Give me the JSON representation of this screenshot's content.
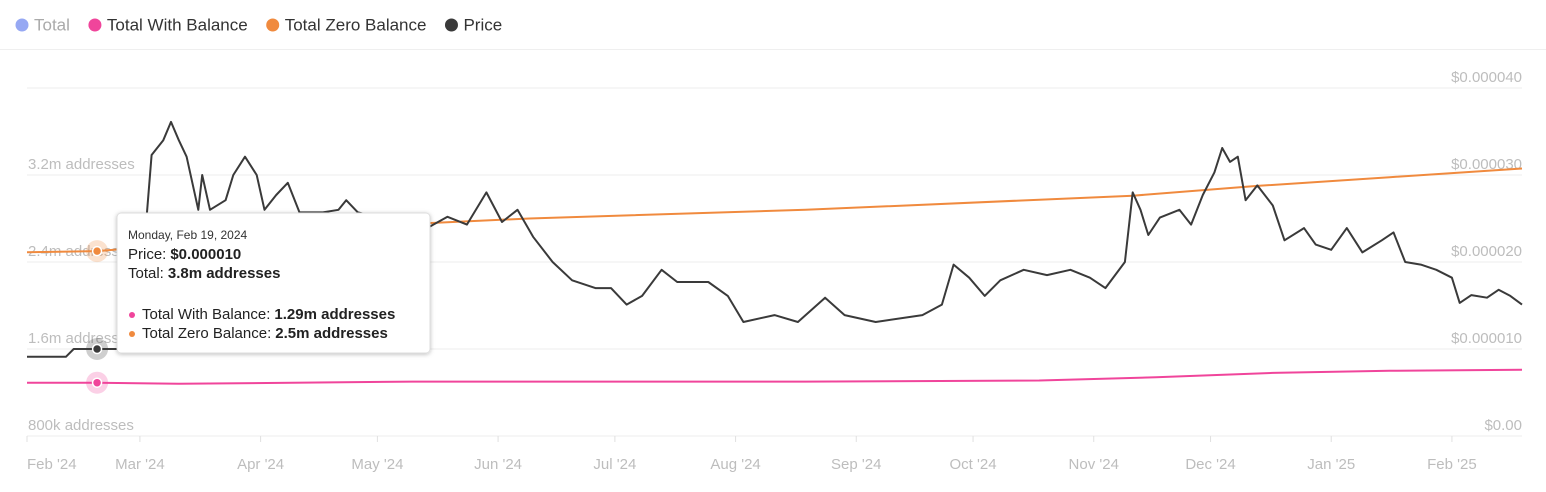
{
  "chart_data": {
    "type": "line",
    "xlim": [
      "2024-02-01",
      "2025-02-19"
    ],
    "xticks": [
      {
        "value": "2024-02-01",
        "label": "Feb '24"
      },
      {
        "value": "2024-03-01",
        "label": "Mar '24"
      },
      {
        "value": "2024-04-01",
        "label": "Apr '24"
      },
      {
        "value": "2024-05-01",
        "label": "May '24"
      },
      {
        "value": "2024-06-01",
        "label": "Jun '24"
      },
      {
        "value": "2024-07-01",
        "label": "Jul '24"
      },
      {
        "value": "2024-08-01",
        "label": "Aug '24"
      },
      {
        "value": "2024-09-01",
        "label": "Sep '24"
      },
      {
        "value": "2024-10-01",
        "label": "Oct '24"
      },
      {
        "value": "2024-11-01",
        "label": "Nov '24"
      },
      {
        "value": "2024-12-01",
        "label": "Dec '24"
      },
      {
        "value": "2025-01-01",
        "label": "Jan '25"
      },
      {
        "value": "2025-02-01",
        "label": "Feb '25"
      }
    ],
    "ylim": [
      800000,
      4000000
    ],
    "yticks": [
      {
        "value": 800000,
        "label": "800k addresses"
      },
      {
        "value": 1600000,
        "label": "1.6m addresses"
      },
      {
        "value": 2400000,
        "label": "2.4m addresses"
      },
      {
        "value": 3200000,
        "label": "3.2m addresses"
      }
    ],
    "y2lim": [
      0,
      4e-05
    ],
    "y2ticks": [
      {
        "value": 0,
        "label": "$0.00"
      },
      {
        "value": 1e-05,
        "label": "$0.000010"
      },
      {
        "value": 2e-05,
        "label": "$0.000020"
      },
      {
        "value": 3e-05,
        "label": "$0.000030"
      },
      {
        "value": 4e-05,
        "label": "$0.000040"
      }
    ],
    "grid": true,
    "series": [
      {
        "name": "Total",
        "color": "#8b9ff2",
        "hidden": true
      },
      {
        "name": "Total With Balance",
        "color": "#f0459b",
        "x": [
          "2024-02-01",
          "2024-02-19",
          "2024-03-11",
          "2024-05-10",
          "2024-08-19",
          "2024-10-18",
          "2024-11-17",
          "2024-12-17",
          "2025-01-16",
          "2025-02-19"
        ],
        "values": [
          1290000,
          1290000,
          1280000,
          1300000,
          1300000,
          1310000,
          1340000,
          1380000,
          1400000,
          1410000
        ]
      },
      {
        "name": "Total Zero Balance",
        "color": "#f08a3e",
        "x": [
          "2024-02-01",
          "2024-02-19",
          "2024-03-31",
          "2024-05-10",
          "2024-06-09",
          "2024-08-19",
          "2024-11-11",
          "2024-12-13",
          "2025-01-16",
          "2025-02-19"
        ],
        "values": [
          2490000,
          2500000,
          2620000,
          2750000,
          2800000,
          2880000,
          3010000,
          3100000,
          3180000,
          3260000
        ]
      },
      {
        "name": "Price",
        "color": "#3a3a3a",
        "axis": "y2",
        "x": [
          "2024-02-01",
          "2024-02-11",
          "2024-02-13",
          "2024-02-19",
          "2024-02-29",
          "2024-03-04",
          "2024-03-07",
          "2024-03-09",
          "2024-03-11",
          "2024-03-13",
          "2024-03-16",
          "2024-03-17",
          "2024-03-19",
          "2024-03-23",
          "2024-03-25",
          "2024-03-28",
          "2024-03-31",
          "2024-04-02",
          "2024-04-05",
          "2024-04-08",
          "2024-04-11",
          "2024-04-17",
          "2024-04-21",
          "2024-04-23",
          "2024-04-26",
          "2024-05-06",
          "2024-05-13",
          "2024-05-19",
          "2024-05-24",
          "2024-05-29",
          "2024-06-02",
          "2024-06-06",
          "2024-06-10",
          "2024-06-15",
          "2024-06-20",
          "2024-06-26",
          "2024-06-30",
          "2024-07-04",
          "2024-07-08",
          "2024-07-13",
          "2024-07-17",
          "2024-07-25",
          "2024-07-30",
          "2024-08-03",
          "2024-08-11",
          "2024-08-17",
          "2024-08-24",
          "2024-08-29",
          "2024-09-06",
          "2024-09-18",
          "2024-09-23",
          "2024-09-26",
          "2024-09-30",
          "2024-10-04",
          "2024-10-08",
          "2024-10-14",
          "2024-10-20",
          "2024-10-26",
          "2024-10-31",
          "2024-11-04",
          "2024-11-09",
          "2024-11-11",
          "2024-11-13",
          "2024-11-15",
          "2024-11-18",
          "2024-11-23",
          "2024-11-26",
          "2024-11-29",
          "2024-12-02",
          "2024-12-04",
          "2024-12-06",
          "2024-12-08",
          "2024-12-10",
          "2024-12-13",
          "2024-12-17",
          "2024-12-20",
          "2024-12-25",
          "2024-12-28",
          "2025-01-01",
          "2025-01-05",
          "2025-01-09",
          "2025-01-14",
          "2025-01-17",
          "2025-01-20",
          "2025-01-24",
          "2025-01-28",
          "2025-02-01",
          "2025-02-03",
          "2025-02-06",
          "2025-02-10",
          "2025-02-13",
          "2025-02-16",
          "2025-02-19"
        ],
        "values": [
          9.1e-06,
          9.1e-06,
          1e-05,
          1e-05,
          1e-05,
          3.23e-05,
          3.4e-05,
          3.61e-05,
          3.4e-05,
          3.21e-05,
          2.6e-05,
          3e-05,
          2.6e-05,
          2.71e-05,
          3e-05,
          3.21e-05,
          3e-05,
          2.6e-05,
          2.77e-05,
          2.91e-05,
          2.57e-05,
          2.57e-05,
          2.6e-05,
          2.71e-05,
          2.57e-05,
          2.46e-05,
          2.37e-05,
          2.52e-05,
          2.43e-05,
          2.8e-05,
          2.46e-05,
          2.6e-05,
          2.29e-05,
          2e-05,
          1.79e-05,
          1.7e-05,
          1.7e-05,
          1.51e-05,
          1.61e-05,
          1.91e-05,
          1.77e-05,
          1.77e-05,
          1.61e-05,
          1.31e-05,
          1.39e-05,
          1.31e-05,
          1.59e-05,
          1.39e-05,
          1.31e-05,
          1.39e-05,
          1.51e-05,
          1.97e-05,
          1.82e-05,
          1.61e-05,
          1.79e-05,
          1.91e-05,
          1.85e-05,
          1.91e-05,
          1.82e-05,
          1.7e-05,
          2e-05,
          2.8e-05,
          2.6e-05,
          2.31e-05,
          2.51e-05,
          2.6e-05,
          2.43e-05,
          2.77e-05,
          3.03e-05,
          3.31e-05,
          3.15e-05,
          3.21e-05,
          2.71e-05,
          2.88e-05,
          2.65e-05,
          2.25e-05,
          2.39e-05,
          2.2e-05,
          2.14e-05,
          2.39e-05,
          2.11e-05,
          2.25e-05,
          2.34e-05,
          2e-05,
          1.97e-05,
          1.91e-05,
          1.82e-05,
          1.53e-05,
          1.62e-05,
          1.59e-05,
          1.68e-05,
          1.61e-05,
          1.51e-05
        ]
      }
    ],
    "tooltip": {
      "date": "Monday, Feb 19, 2024",
      "rows": [
        {
          "label": "Price:",
          "value": "$0.000010"
        },
        {
          "label": "Total:",
          "value": "3.8m addresses"
        },
        {
          "label": "Total With Balance:",
          "value": "1.29m addresses"
        },
        {
          "label": "Total Zero Balance:",
          "value": "2.5m addresses"
        }
      ]
    }
  }
}
